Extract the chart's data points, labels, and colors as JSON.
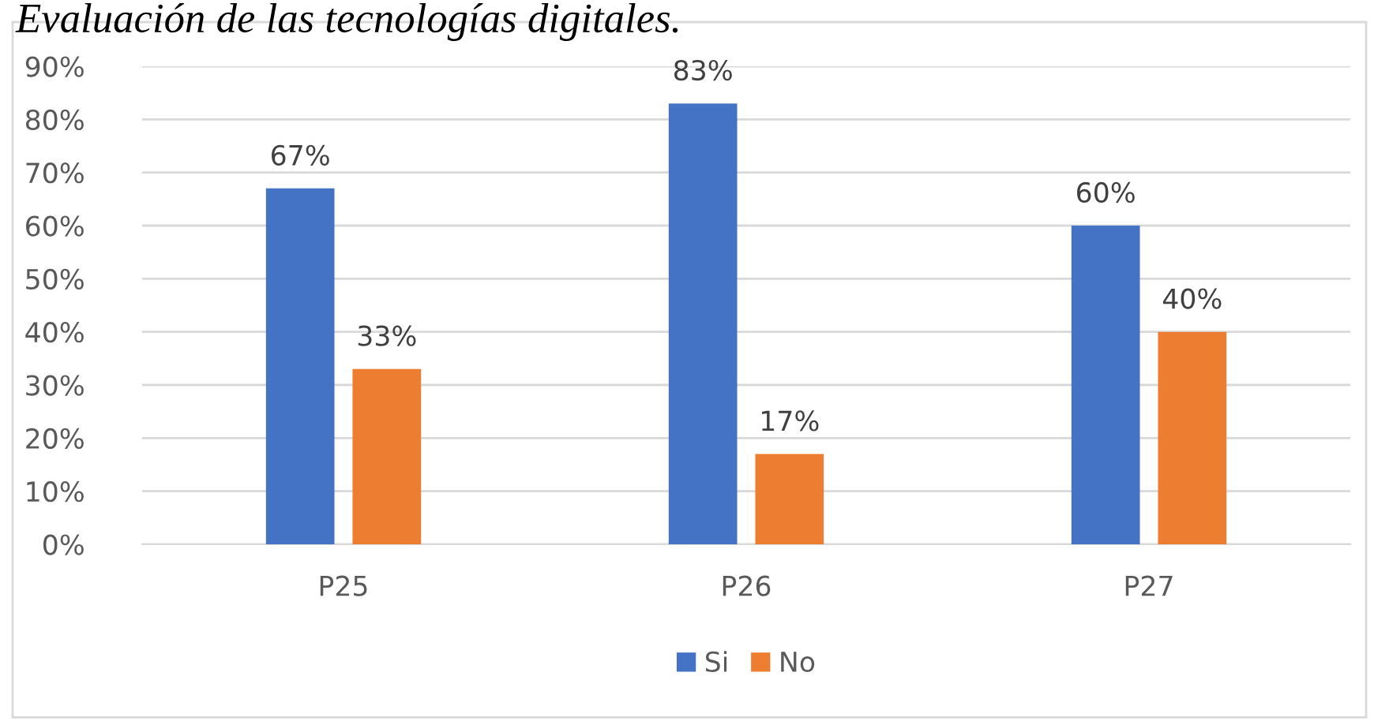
{
  "chart_data": {
    "type": "bar",
    "title": "Evaluación de las tecnologías digitales.",
    "categories": [
      "P25",
      "P26",
      "P27"
    ],
    "series": [
      {
        "name": "Si",
        "color": "#4472c4",
        "values": [
          67,
          83,
          60
        ],
        "value_labels": [
          "67%",
          "83%",
          "60%"
        ]
      },
      {
        "name": "No",
        "color": "#ed7d31",
        "values": [
          33,
          17,
          40
        ],
        "value_labels": [
          "33%",
          "17%",
          "40%"
        ]
      }
    ],
    "ylim": [
      0,
      90
    ],
    "yticks": [
      {
        "value": 0,
        "label": "0%"
      },
      {
        "value": 10,
        "label": "10%"
      },
      {
        "value": 20,
        "label": "20%"
      },
      {
        "value": 30,
        "label": "30%"
      },
      {
        "value": 40,
        "label": "40%"
      },
      {
        "value": 50,
        "label": "50%"
      },
      {
        "value": 60,
        "label": "60%"
      },
      {
        "value": 70,
        "label": "70%"
      },
      {
        "value": 80,
        "label": "80%"
      },
      {
        "value": 90,
        "label": "90%"
      }
    ],
    "grid": "y",
    "legend": "bottom"
  }
}
